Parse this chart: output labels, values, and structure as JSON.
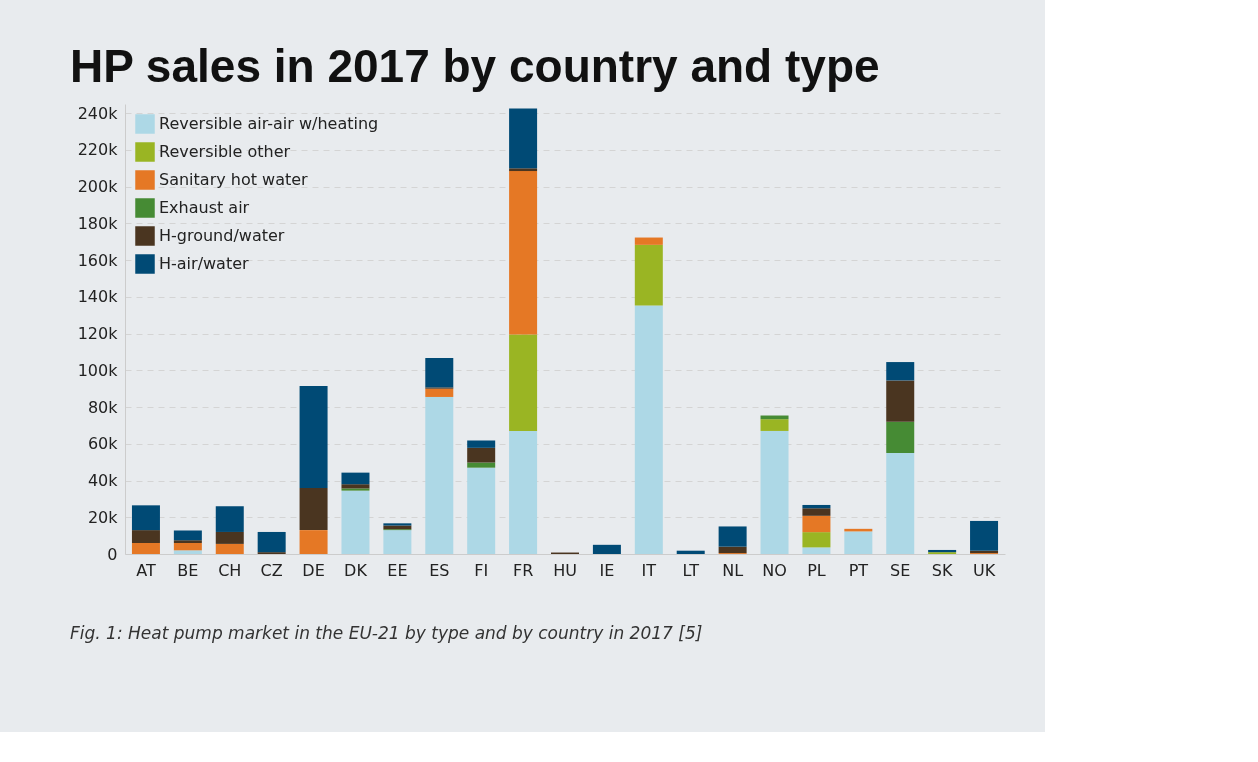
{
  "chart_data": {
    "type": "bar",
    "stacked": true,
    "title": "HP sales in 2017 by country and type",
    "categories": [
      "AT",
      "BE",
      "CH",
      "CZ",
      "DE",
      "DK",
      "EE",
      "ES",
      "FI",
      "FR",
      "HU",
      "IE",
      "IT",
      "LT",
      "NL",
      "NO",
      "PL",
      "PT",
      "SE",
      "SK",
      "UK"
    ],
    "series": [
      {
        "name": "Reversible air-air w/heating",
        "color": "#add8e6",
        "values": [
          0,
          2000,
          0,
          0,
          0,
          34500,
          13000,
          85500,
          47000,
          67000,
          0,
          0,
          135300,
          0,
          0,
          67000,
          3600,
          12300,
          55000,
          null,
          0
        ]
      },
      {
        "name": "Reversible other",
        "color": "#9ab523",
        "values": [
          0,
          0,
          0,
          0,
          0,
          0,
          0,
          0,
          0,
          52500,
          0,
          0,
          33000,
          0,
          0,
          6400,
          8300,
          null,
          0,
          1000,
          0
        ]
      },
      {
        "name": "Sanitary hot water",
        "color": "#e57825",
        "values": [
          6000,
          4000,
          5500,
          0,
          13000,
          0,
          0,
          4500,
          0,
          89000,
          0,
          null,
          4000,
          0,
          500,
          0,
          8900,
          1400,
          0,
          0,
          500
        ]
      },
      {
        "name": "Exhaust air",
        "color": "#468b34",
        "values": [
          0,
          0,
          0,
          0,
          0,
          1200,
          500,
          0,
          2800,
          0,
          0,
          0,
          0,
          0,
          0,
          2000,
          0,
          0,
          17000,
          0,
          0
        ]
      },
      {
        "name": "H-ground/water",
        "color": "#4a3520",
        "values": [
          7000,
          1500,
          6500,
          1000,
          23000,
          2300,
          2000,
          700,
          8000,
          1500,
          800,
          0,
          0,
          0,
          3500,
          0,
          4100,
          0,
          22500,
          0,
          1300
        ]
      },
      {
        "name": "H-air/water",
        "color": "#004a75",
        "values": [
          13500,
          5300,
          14000,
          11000,
          55500,
          6300,
          1200,
          16000,
          4000,
          32500,
          0,
          5000,
          0,
          1800,
          11000,
          0,
          1800,
          0,
          10000,
          1200,
          16200
        ]
      }
    ],
    "ylim": [
      0,
      245000
    ],
    "yticks": [
      0,
      {
        "value": 20000,
        "label": "20k"
      },
      {
        "value": 40000,
        "label": "40k"
      },
      {
        "value": 60000,
        "label": "60k"
      },
      {
        "value": 80000,
        "label": "80k"
      },
      {
        "value": 100000,
        "label": "100k"
      },
      {
        "value": 120000,
        "label": "120k"
      },
      {
        "value": 140000,
        "label": "140k"
      },
      {
        "value": 160000,
        "label": "160k"
      },
      {
        "value": 180000,
        "label": "180k"
      },
      {
        "value": 200000,
        "label": "200k"
      },
      {
        "value": 220000,
        "label": "220k"
      },
      {
        "value": 240000,
        "label": "240k"
      }
    ],
    "grid": "y",
    "legend": "top left",
    "annotations": [
      "Fig. 1: Heat pump market in the EU-21 by type and by country in 2017 [5]"
    ]
  }
}
